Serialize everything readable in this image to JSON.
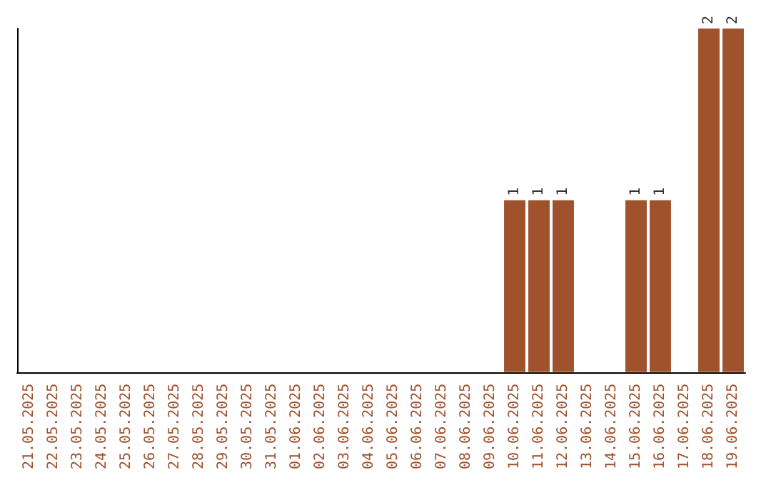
{
  "chart_data": {
    "type": "bar",
    "categories": [
      "21.05.2025",
      "22.05.2025",
      "23.05.2025",
      "24.05.2025",
      "25.05.2025",
      "26.05.2025",
      "27.05.2025",
      "28.05.2025",
      "29.05.2025",
      "30.05.2025",
      "31.05.2025",
      "01.06.2025",
      "02.06.2025",
      "03.06.2025",
      "04.06.2025",
      "05.06.2025",
      "06.06.2025",
      "07.06.2025",
      "08.06.2025",
      "09.06.2025",
      "10.06.2025",
      "11.06.2025",
      "12.06.2025",
      "13.06.2025",
      "14.06.2025",
      "15.06.2025",
      "16.06.2025",
      "17.06.2025",
      "18.06.2025",
      "19.06.2025"
    ],
    "values": [
      null,
      null,
      null,
      null,
      null,
      null,
      null,
      null,
      null,
      null,
      null,
      null,
      null,
      null,
      null,
      null,
      null,
      null,
      null,
      null,
      1,
      1,
      1,
      null,
      null,
      1,
      1,
      null,
      2,
      2
    ],
    "value_labels": [
      null,
      null,
      null,
      null,
      null,
      null,
      null,
      null,
      null,
      null,
      null,
      null,
      null,
      null,
      null,
      null,
      null,
      null,
      null,
      null,
      "1",
      "1",
      "1",
      null,
      null,
      "1",
      "1",
      null,
      "2",
      "2"
    ],
    "color": "#a0522d",
    "grid": false
  }
}
